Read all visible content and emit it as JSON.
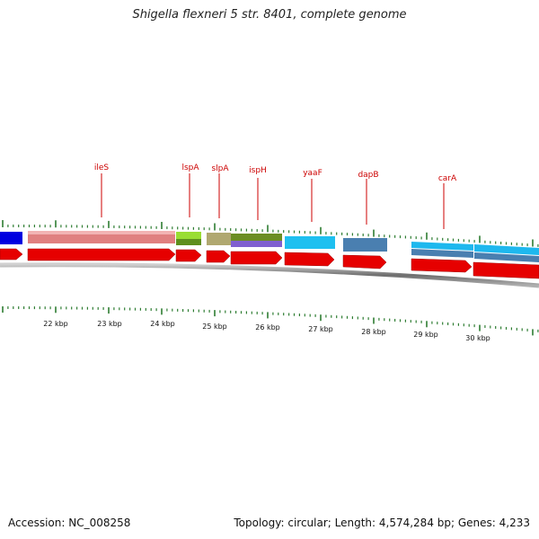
{
  "title": "Shigella flexneri 5 str. 8401, complete genome",
  "footer": {
    "accession": "Accession: NC_008258",
    "summary": "Topology: circular; Length: 4,574,284 bp; Genes: 4,233"
  },
  "colors": {
    "gene_label": "#cc0000",
    "cds_arrow": "#e60000",
    "tick": "#2e7d32",
    "backbone": "#7a7a7a"
  },
  "scale_labels": [
    "22 kbp",
    "23 kbp",
    "24 kbp",
    "25 kbp",
    "26 kbp",
    "27 kbp",
    "28 kbp",
    "29 kbp",
    "30 kbp"
  ],
  "gene_labels": [
    "ileS",
    "lspA",
    "slpA",
    "ispH",
    "yaaF",
    "dapB",
    "carA"
  ],
  "feature_colors": [
    "#0000e0",
    "#e08080",
    "#99dd33",
    "#b0a870",
    "#6b8e23",
    "#8060d0",
    "#1ec0f0",
    "#4a7fb0",
    "#1eb8ee"
  ]
}
